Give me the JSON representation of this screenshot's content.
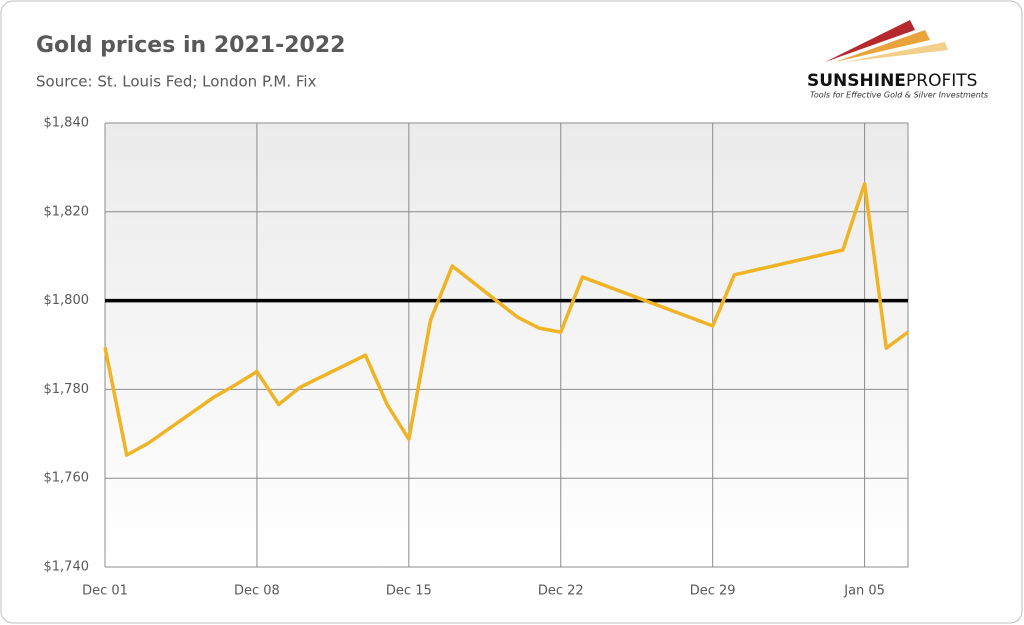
{
  "chart_data": {
    "type": "line",
    "title": "Gold prices in 2021-2022",
    "subtitle": "Source: St. Louis Fed; London P.M. Fix",
    "brand": {
      "name_bold": "SUNSHINE",
      "name_light": "PROFITS",
      "tagline": "Tools for Effective Gold & Silver Investments"
    },
    "x": [
      "Dec 01",
      "Dec 02",
      "Dec 03",
      "Dec 06",
      "Dec 07",
      "Dec 08",
      "Dec 09",
      "Dec 10",
      "Dec 13",
      "Dec 14",
      "Dec 15",
      "Dec 16",
      "Dec 17",
      "Dec 20",
      "Dec 21",
      "Dec 22",
      "Dec 23",
      "Dec 29",
      "Dec 30",
      "Jan 04",
      "Jan 05",
      "Jan 06",
      "Jan 07"
    ],
    "series": [
      {
        "name": "Gold price",
        "color": "#f0b323",
        "values": [
          1789.5,
          1765.2,
          1767.9,
          1778.2,
          1781.0,
          1784.0,
          1776.6,
          1780.5,
          1787.7,
          1776.6,
          1768.8,
          1795.6,
          1807.8,
          1796.3,
          1793.8,
          1792.9,
          1805.3,
          1794.3,
          1805.8,
          1811.4,
          1826.3,
          1789.3,
          1792.9
        ]
      }
    ],
    "reference_line": {
      "value": 1800,
      "color": "#000000"
    },
    "xlim": [
      "Dec 01",
      "Jan 07"
    ],
    "xticks": [
      "Dec 01",
      "Dec 08",
      "Dec 15",
      "Dec 22",
      "Dec 29",
      "Jan 05"
    ],
    "ylim": [
      1740,
      1840
    ],
    "yticks": [
      {
        "value": 1740,
        "label": "$1,740"
      },
      {
        "value": 1760,
        "label": "$1,760"
      },
      {
        "value": 1780,
        "label": "$1,780"
      },
      {
        "value": 1800,
        "label": "$1,800"
      },
      {
        "value": 1820,
        "label": "$1,820"
      },
      {
        "value": 1840,
        "label": "$1,840"
      }
    ],
    "grid": true
  }
}
